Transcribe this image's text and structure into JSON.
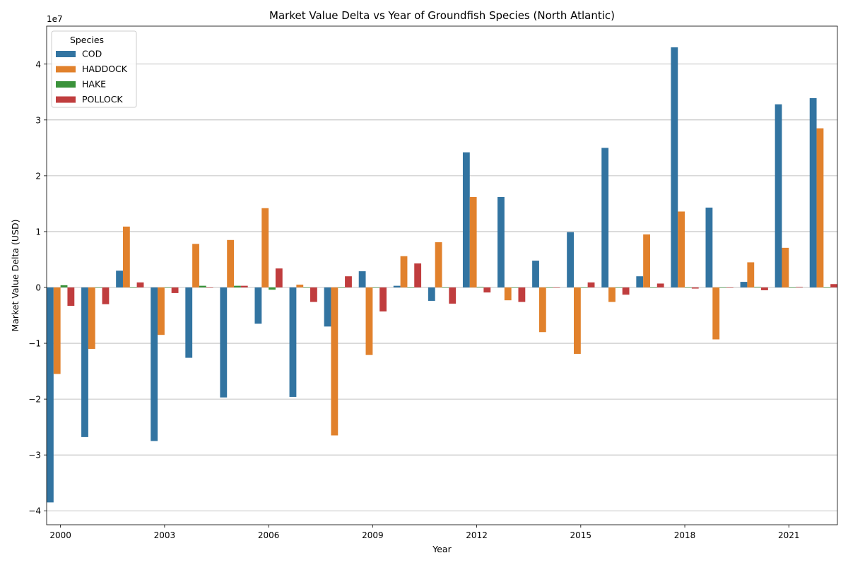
{
  "chart_data": {
    "type": "bar",
    "title": "Market Value Delta vs Year of Groundfish Species (North Atlantic)",
    "xlabel": "Year",
    "ylabel": "Market Value Delta (USD)",
    "y_offset_label": "1e7",
    "y_scale": 10000000,
    "ylim": [
      -42500000,
      46800000
    ],
    "yticks": [
      -40000000,
      -30000000,
      -20000000,
      -10000000,
      0,
      10000000,
      20000000,
      30000000,
      40000000
    ],
    "ytick_labels": [
      "−4",
      "−3",
      "−2",
      "−1",
      "0",
      "1",
      "2",
      "3",
      "4"
    ],
    "grid": "y",
    "legend_title": "Species",
    "legend_position": "top-left",
    "categories": [
      2000,
      2001,
      2002,
      2003,
      2004,
      2005,
      2006,
      2007,
      2008,
      2009,
      2010,
      2011,
      2012,
      2013,
      2014,
      2015,
      2016,
      2017,
      2018,
      2019,
      2020,
      2021,
      2022
    ],
    "xtick_labels": [
      "2000",
      "2003",
      "2006",
      "2009",
      "2012",
      "2015",
      "2018",
      "2021"
    ],
    "xtick_years": [
      2000,
      2003,
      2006,
      2009,
      2012,
      2015,
      2018,
      2021
    ],
    "series": [
      {
        "name": "COD",
        "color": "#3274a1",
        "values": [
          -38500000,
          -26800000,
          3000000,
          -27500000,
          -12600000,
          -19700000,
          -6500000,
          -19600000,
          -7000000,
          2900000,
          300000,
          -2400000,
          24200000,
          16200000,
          4800000,
          9900000,
          25000000,
          2000000,
          43000000,
          14300000,
          1000000,
          32800000,
          33900000
        ]
      },
      {
        "name": "HADDOCK",
        "color": "#e1812c",
        "values": [
          -15500000,
          -11000000,
          10900000,
          -8500000,
          7800000,
          8500000,
          14200000,
          500000,
          -26500000,
          -12100000,
          5600000,
          8100000,
          16200000,
          -2300000,
          -8000000,
          -11900000,
          -2600000,
          9500000,
          13600000,
          -9300000,
          4500000,
          7100000,
          28500000
        ]
      },
      {
        "name": "HAKE",
        "color": "#3a923a",
        "values": [
          400000,
          0,
          0,
          0,
          300000,
          300000,
          -400000,
          0,
          0,
          0,
          0,
          0,
          100000,
          0,
          0,
          0,
          0,
          0,
          0,
          0,
          100000,
          0,
          0
        ]
      },
      {
        "name": "POLLOCK",
        "color": "#c03d3e",
        "values": [
          -3300000,
          -3000000,
          900000,
          -1000000,
          0,
          300000,
          3400000,
          -2600000,
          2000000,
          -4300000,
          4300000,
          -2900000,
          -900000,
          -2600000,
          0,
          900000,
          -1300000,
          700000,
          -200000,
          0,
          -500000,
          100000,
          600000
        ]
      }
    ]
  }
}
